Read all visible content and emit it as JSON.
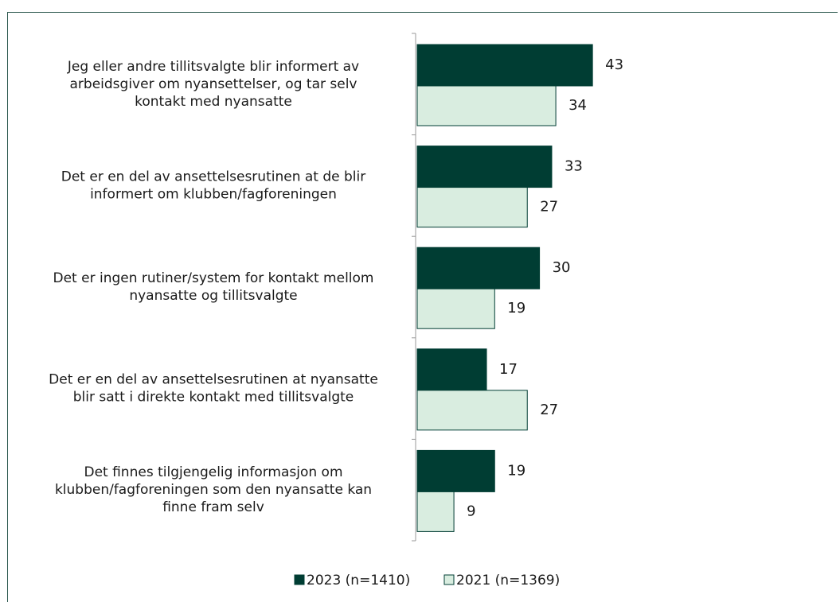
{
  "chart_data": {
    "type": "hbar",
    "categories": [
      [
        "Jeg eller andre tillitsvalgte blir informert av",
        "arbeidsgiver om nyansettelser, og tar selv",
        "kontakt med nyansatte"
      ],
      [
        "Det er en del av ansettelsesrutinen at de blir",
        "informert om klubben/fagforeningen"
      ],
      [
        "Det er ingen rutiner/system for kontakt mellom",
        "nyansatte og tillitsvalgte"
      ],
      [
        "Det er en del av ansettelsesrutinen at nyansatte",
        "blir satt i direkte kontakt med tillitsvalgte"
      ],
      [
        "Det finnes tilgjengelig informasjon om",
        "klubben/fagforeningen som den nyansatte kan",
        "finne fram selv"
      ]
    ],
    "series": [
      {
        "name": "2023 (n=1410)",
        "color": "#003d33",
        "values": [
          43,
          33,
          30,
          17,
          19
        ]
      },
      {
        "name": "2021 (n=1369)",
        "color": "#d9ede0",
        "values": [
          34,
          27,
          19,
          27,
          9
        ]
      }
    ],
    "xlim": [
      0,
      100
    ],
    "legend": "bottom"
  }
}
